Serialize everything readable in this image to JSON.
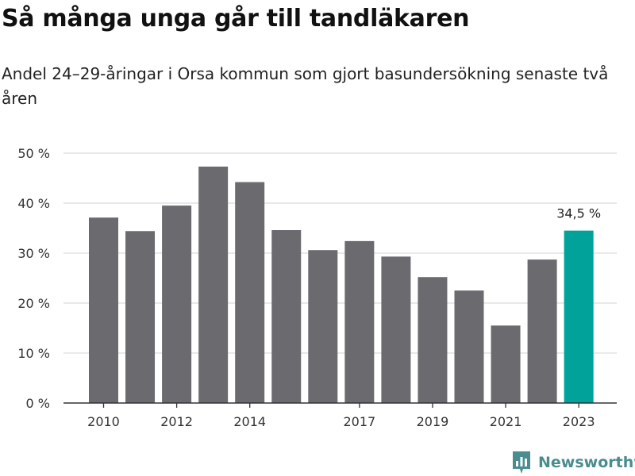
{
  "header": {
    "title": "Så många unga går till tandläkaren",
    "subtitle": "Andel 24–29-åringar i Orsa kommun som gjort basundersökning senaste två åren"
  },
  "brand": {
    "name": "Newsworthy",
    "icon": "newsworthy-logo-icon",
    "color": "#4a8c8f"
  },
  "chart_data": {
    "type": "bar",
    "categories": [
      "2010",
      "2011",
      "2012",
      "2013",
      "2014",
      "2015",
      "2016",
      "2017",
      "2018",
      "2019",
      "2020",
      "2021",
      "2022",
      "2023"
    ],
    "values": [
      37.1,
      34.4,
      39.5,
      47.3,
      44.2,
      34.6,
      30.6,
      32.4,
      29.3,
      25.2,
      22.5,
      15.5,
      28.7,
      34.5
    ],
    "x_tick_labels": [
      {
        "category": "2010",
        "label": "2010"
      },
      {
        "category": "2012",
        "label": "2012"
      },
      {
        "category": "2014",
        "label": "2014"
      },
      {
        "category": "2017",
        "label": "2017"
      },
      {
        "category": "2019",
        "label": "2019"
      },
      {
        "category": "2021",
        "label": "2021"
      },
      {
        "category": "2023",
        "label": "2023"
      }
    ],
    "y_ticks": [
      {
        "value": 0,
        "label": "0 %"
      },
      {
        "value": 10,
        "label": "10 %"
      },
      {
        "value": 20,
        "label": "20 %"
      },
      {
        "value": 30,
        "label": "30 %"
      },
      {
        "value": 40,
        "label": "40 %"
      },
      {
        "value": 50,
        "label": "50 %"
      }
    ],
    "ylim": [
      0,
      50
    ],
    "grid": true,
    "highlight": {
      "category": "2023",
      "label": "34,5 %"
    },
    "colors": {
      "bar": "#6b6a6f",
      "highlight": "#00a29a",
      "grid": "#dcdcdc",
      "axis": "#333333"
    },
    "xlabel": "",
    "ylabel": ""
  }
}
